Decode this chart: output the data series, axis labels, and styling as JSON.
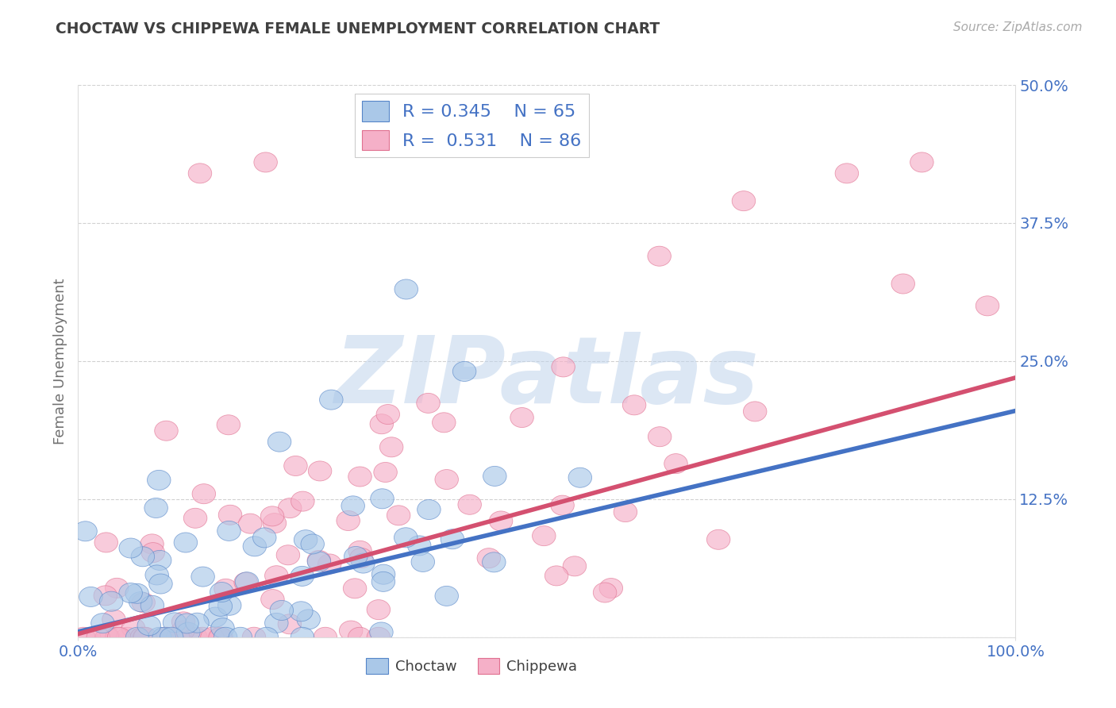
{
  "title": "CHOCTAW VS CHIPPEWA FEMALE UNEMPLOYMENT CORRELATION CHART",
  "source": "Source: ZipAtlas.com",
  "ylabel": "Female Unemployment",
  "xlim": [
    0,
    1
  ],
  "ylim": [
    0,
    0.5
  ],
  "yticks": [
    0.0,
    0.125,
    0.25,
    0.375,
    0.5
  ],
  "ytick_labels": [
    "",
    "12.5%",
    "25.0%",
    "37.5%",
    "50.0%"
  ],
  "xtick_labels": [
    "0.0%",
    "100.0%"
  ],
  "choctaw_color": "#aac8e8",
  "chippewa_color": "#f5b0c8",
  "choctaw_edge_color": "#5585c8",
  "chippewa_edge_color": "#e07090",
  "choctaw_line_color": "#4472c4",
  "chippewa_line_color": "#d45070",
  "choctaw_R": 0.345,
  "choctaw_N": 65,
  "chippewa_R": 0.531,
  "chippewa_N": 86,
  "choctaw_line": [
    [
      0.0,
      0.005
    ],
    [
      1.0,
      0.205
    ]
  ],
  "chippewa_line": [
    [
      0.0,
      0.003
    ],
    [
      1.0,
      0.235
    ]
  ],
  "watermark": "ZIPatlas",
  "background_color": "#ffffff",
  "grid_color": "#cccccc",
  "title_color": "#404040",
  "source_color": "#aaaaaa",
  "axis_label_color": "#707070",
  "tick_color": "#4472c4"
}
